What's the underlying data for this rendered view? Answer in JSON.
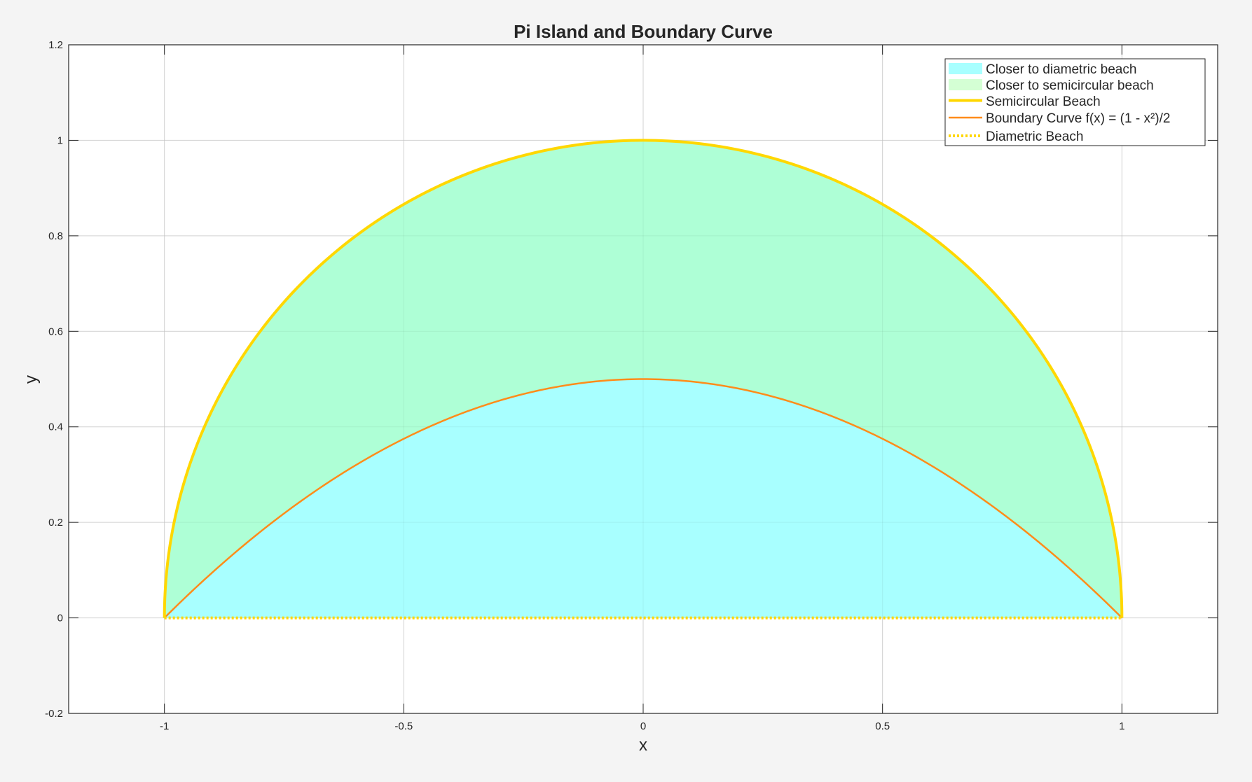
{
  "chart_data": {
    "type": "area",
    "title": "Pi Island and Boundary Curve",
    "xlabel": "x",
    "ylabel": "y",
    "xlim": [
      -1.2,
      1.2
    ],
    "ylim": [
      -0.2,
      1.2
    ],
    "xticks": [
      -1,
      -0.5,
      0,
      0.5,
      1
    ],
    "xtick_labels": [
      "-1",
      "-0.5",
      "0",
      "0.5",
      "1"
    ],
    "yticks": [
      -0.2,
      0,
      0.2,
      0.4,
      0.6,
      0.8,
      1,
      1.2
    ],
    "ytick_labels": [
      "-0.2",
      "0",
      "0.2",
      "0.4",
      "0.6",
      "0.8",
      "1",
      "1.2"
    ],
    "grid": true,
    "legend_position": "top-right",
    "colors": {
      "diametric_fill": "#a8ffff",
      "semicircular_fill": "#aeffd6",
      "semicircle_line": "#ffd700",
      "boundary_line": "#ff8c1a",
      "diametric_line": "#ffd700"
    },
    "series": [
      {
        "name": "Closer to diametric beach",
        "kind": "fill",
        "x": [
          -1,
          -0.75,
          -0.5,
          -0.25,
          0,
          0.25,
          0.5,
          0.75,
          1
        ],
        "y_lower": [
          0,
          0,
          0,
          0,
          0,
          0,
          0,
          0,
          0
        ],
        "y_upper": [
          0,
          0.21875,
          0.375,
          0.46875,
          0.5,
          0.46875,
          0.375,
          0.21875,
          0
        ]
      },
      {
        "name": "Closer to semicircular beach",
        "kind": "fill",
        "x": [
          -1,
          -0.75,
          -0.5,
          -0.25,
          0,
          0.25,
          0.5,
          0.75,
          1
        ],
        "y_lower": [
          0,
          0.21875,
          0.375,
          0.46875,
          0.5,
          0.46875,
          0.375,
          0.21875,
          0
        ],
        "y_upper": [
          0,
          0.661,
          0.866,
          0.968,
          1,
          0.968,
          0.866,
          0.661,
          0
        ]
      },
      {
        "name": "Semicircular Beach",
        "kind": "line",
        "x": [
          -1,
          -0.75,
          -0.5,
          -0.25,
          0,
          0.25,
          0.5,
          0.75,
          1
        ],
        "y": [
          0,
          0.661,
          0.866,
          0.968,
          1,
          0.968,
          0.866,
          0.661,
          0
        ]
      },
      {
        "name": "Boundary Curve f(x) = (1 - x²)/2",
        "kind": "line",
        "x": [
          -1,
          -0.75,
          -0.5,
          -0.25,
          0,
          0.25,
          0.5,
          0.75,
          1
        ],
        "y": [
          0,
          0.21875,
          0.375,
          0.46875,
          0.5,
          0.46875,
          0.375,
          0.21875,
          0
        ]
      },
      {
        "name": "Diametric Beach",
        "kind": "dotted-line",
        "x": [
          -1,
          1
        ],
        "y": [
          0,
          0
        ]
      }
    ]
  }
}
